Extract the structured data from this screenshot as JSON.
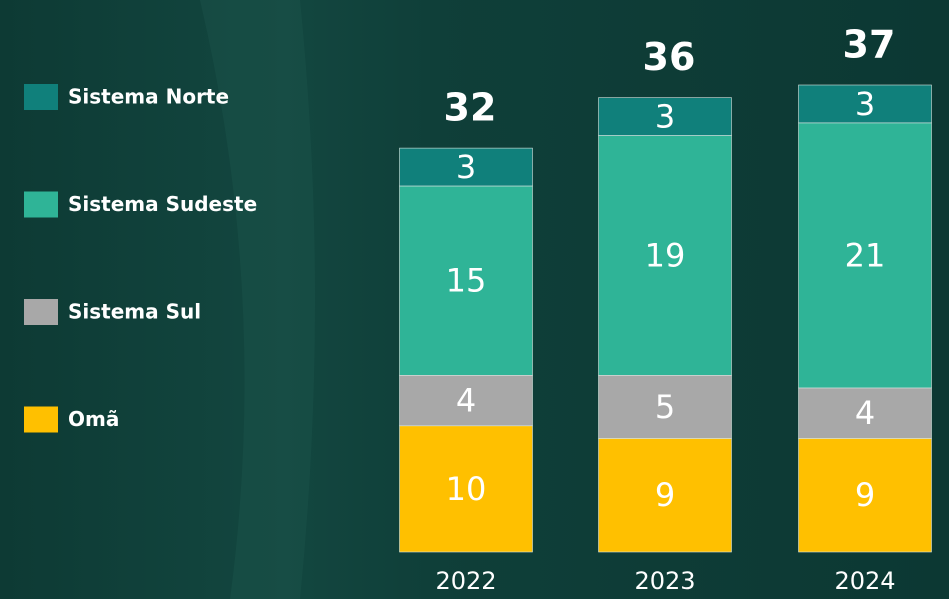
{
  "chart_data": {
    "type": "stacked_bar",
    "categories": [
      "2022",
      "2023",
      "2024"
    ],
    "series": [
      {
        "name": "Omã",
        "color": "#ffc000",
        "values": [
          10,
          9,
          9
        ]
      },
      {
        "name": "Sistema Sul",
        "color": "#a8a8a8",
        "values": [
          4,
          5,
          4
        ]
      },
      {
        "name": "Sistema Sudeste",
        "color": "#2fb497",
        "values": [
          15,
          19,
          21
        ]
      },
      {
        "name": "Sistema Norte",
        "color": "#10807b",
        "values": [
          3,
          3,
          3
        ]
      }
    ],
    "totals": [
      32,
      36,
      37
    ]
  }
}
